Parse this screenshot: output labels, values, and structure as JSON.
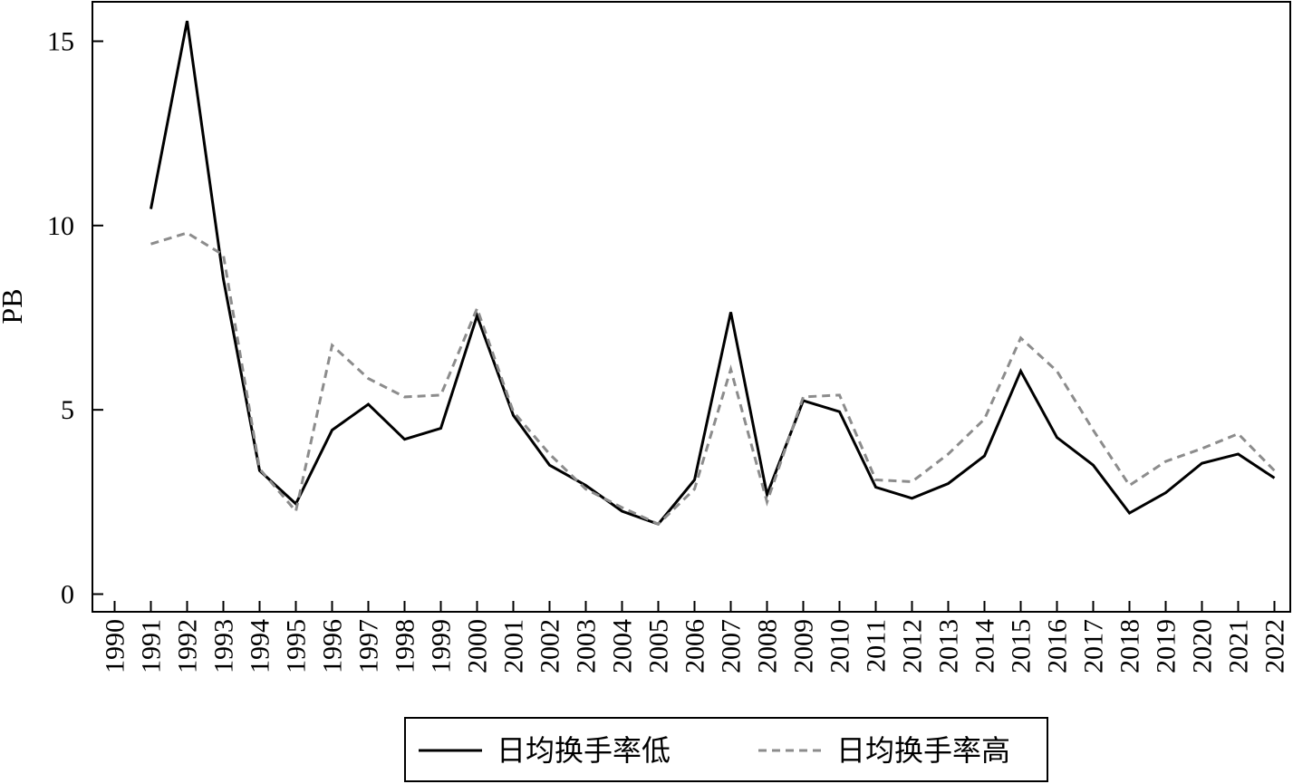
{
  "chart_data": {
    "type": "line",
    "title": "",
    "xlabel": "",
    "ylabel": "PB",
    "ylim": [
      -0.5,
      16.1
    ],
    "yticks": [
      0,
      5,
      10,
      15
    ],
    "grid": false,
    "legend_position": "bottom-center",
    "categories": [
      "1990",
      "1991",
      "1992",
      "1993",
      "1994",
      "1995",
      "1996",
      "1997",
      "1998",
      "1999",
      "2000",
      "2001",
      "2002",
      "2003",
      "2004",
      "2005",
      "2006",
      "2007",
      "2008",
      "2009",
      "2010",
      "2011",
      "2012",
      "2013",
      "2014",
      "2015",
      "2016",
      "2017",
      "2018",
      "2019",
      "2020",
      "2021",
      "2022"
    ],
    "series": [
      {
        "name": "日均换手率低",
        "color": "#000000",
        "style": "solid",
        "values": [
          null,
          10.45,
          15.55,
          8.55,
          3.35,
          2.45,
          4.45,
          5.15,
          4.2,
          4.5,
          7.55,
          4.85,
          3.5,
          2.95,
          2.25,
          1.9,
          3.1,
          7.65,
          2.7,
          5.25,
          4.95,
          2.9,
          2.6,
          3.0,
          3.75,
          6.05,
          4.25,
          3.5,
          2.2,
          2.75,
          3.55,
          3.8,
          3.15
        ]
      },
      {
        "name": "日均换手率高",
        "color": "#8c8c8c",
        "style": "dashed",
        "values": [
          null,
          9.5,
          9.8,
          9.2,
          3.4,
          2.25,
          6.75,
          5.85,
          5.35,
          5.4,
          7.75,
          4.95,
          3.8,
          2.85,
          2.35,
          1.9,
          2.85,
          6.1,
          2.5,
          5.35,
          5.4,
          3.1,
          3.05,
          3.8,
          4.75,
          6.95,
          6.05,
          4.45,
          2.95,
          3.6,
          3.95,
          4.35,
          3.35
        ]
      }
    ]
  }
}
